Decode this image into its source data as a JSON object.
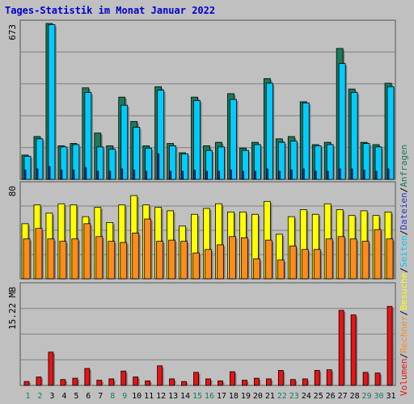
{
  "chart_data": {
    "type": "bar",
    "title": "Tages-Statistik im Monat Januar 2022",
    "days": [
      1,
      2,
      3,
      4,
      5,
      6,
      7,
      8,
      9,
      10,
      11,
      12,
      13,
      14,
      15,
      16,
      17,
      18,
      19,
      20,
      21,
      22,
      23,
      24,
      25,
      26,
      27,
      28,
      29,
      30,
      31
    ],
    "weekend_days": [
      1,
      2,
      8,
      9,
      15,
      16,
      22,
      23,
      29,
      30
    ],
    "panels": [
      {
        "id": "top",
        "y_label": "673",
        "ylim": [
          0,
          673
        ],
        "series": [
          {
            "name": "Anfragen",
            "color": "#1a7a5a",
            "values": [
              105,
              185,
              673,
              145,
              155,
              395,
              200,
              145,
              355,
              250,
              145,
              400,
              155,
              115,
              355,
              145,
              160,
              370,
              135,
              160,
              435,
              175,
              185,
              335,
              150,
              160,
              565,
              390,
              160,
              150,
              415
            ]
          },
          {
            "name": "Dateien",
            "color": "#00ccff",
            "values": [
              100,
              175,
              668,
              140,
              150,
              375,
              140,
              130,
              320,
              225,
              135,
              385,
              145,
              110,
              340,
              125,
              140,
              345,
              125,
              150,
              415,
              160,
              165,
              330,
              145,
              150,
              500,
              375,
              155,
              140,
              400
            ]
          },
          {
            "name": "Seiten",
            "color": "#3333cc",
            "values": [
              40,
              45,
              55,
              40,
              40,
              50,
              35,
              35,
              45,
              40,
              35,
              110,
              35,
              35,
              40,
              35,
              35,
              40,
              35,
              35,
              45,
              35,
              40,
              45,
              35,
              35,
              45,
              45,
              40,
              35,
              45
            ]
          }
        ]
      },
      {
        "id": "middle",
        "y_label": "80",
        "ylim": [
          0,
          80
        ],
        "series": [
          {
            "name": "Besuche",
            "color": "#ffff00",
            "values": [
              47,
              63,
              56,
              64,
              63,
              53,
              61,
              48,
              63,
              71,
              63,
              61,
              58,
              45,
              55,
              60,
              64,
              57,
              57,
              55,
              66,
              38,
              53,
              59,
              55,
              64,
              59,
              54,
              58,
              54,
              57
            ]
          },
          {
            "name": "Rechner",
            "color": "#ff8c1a",
            "values": [
              34,
              43,
              34,
              32,
              34,
              47,
              36,
              32,
              31,
              39,
              51,
              32,
              33,
              32,
              22,
              25,
              29,
              36,
              35,
              17,
              33,
              16,
              28,
              25,
              25,
              34,
              36,
              34,
              32,
              42,
              34
            ]
          }
        ]
      },
      {
        "id": "bottom",
        "y_label": "15.22 MB",
        "ylim": [
          0,
          15.22
        ],
        "series": [
          {
            "name": "Volumen",
            "color": "#ee1111",
            "values": [
              0.6,
              1.3,
              5.1,
              0.9,
              1.1,
              2.6,
              0.8,
              1.0,
              2.2,
              1.3,
              0.7,
              3.0,
              1.0,
              0.6,
              2.0,
              1.0,
              0.7,
              2.1,
              0.8,
              1.1,
              1.0,
              2.3,
              0.9,
              1.0,
              2.3,
              2.4,
              11.5,
              10.8,
              2.0,
              1.9,
              12.1
            ]
          }
        ]
      }
    ],
    "legend": [
      {
        "text": "Volumen",
        "color": "#ee1111"
      },
      {
        "text": "/",
        "color": "#000000"
      },
      {
        "text": "Rechner",
        "color": "#ff8c1a"
      },
      {
        "text": "/",
        "color": "#000000"
      },
      {
        "text": "Besuche",
        "color": "#ffff00"
      },
      {
        "text": "/",
        "color": "#000000"
      },
      {
        "text": "Seiten",
        "color": "#00ccff"
      },
      {
        "text": "/",
        "color": "#000000"
      },
      {
        "text": "Dateien",
        "color": "#3333cc"
      },
      {
        "text": "/",
        "color": "#000000"
      },
      {
        "text": "Anfragen",
        "color": "#1a7a5a"
      }
    ],
    "colors": {
      "title": "#0000cc",
      "weekday_label": "#000000",
      "weekend_label": "#1a7a5a",
      "background": "#c0c0c0",
      "plot_background": "#c0c0c0"
    }
  }
}
